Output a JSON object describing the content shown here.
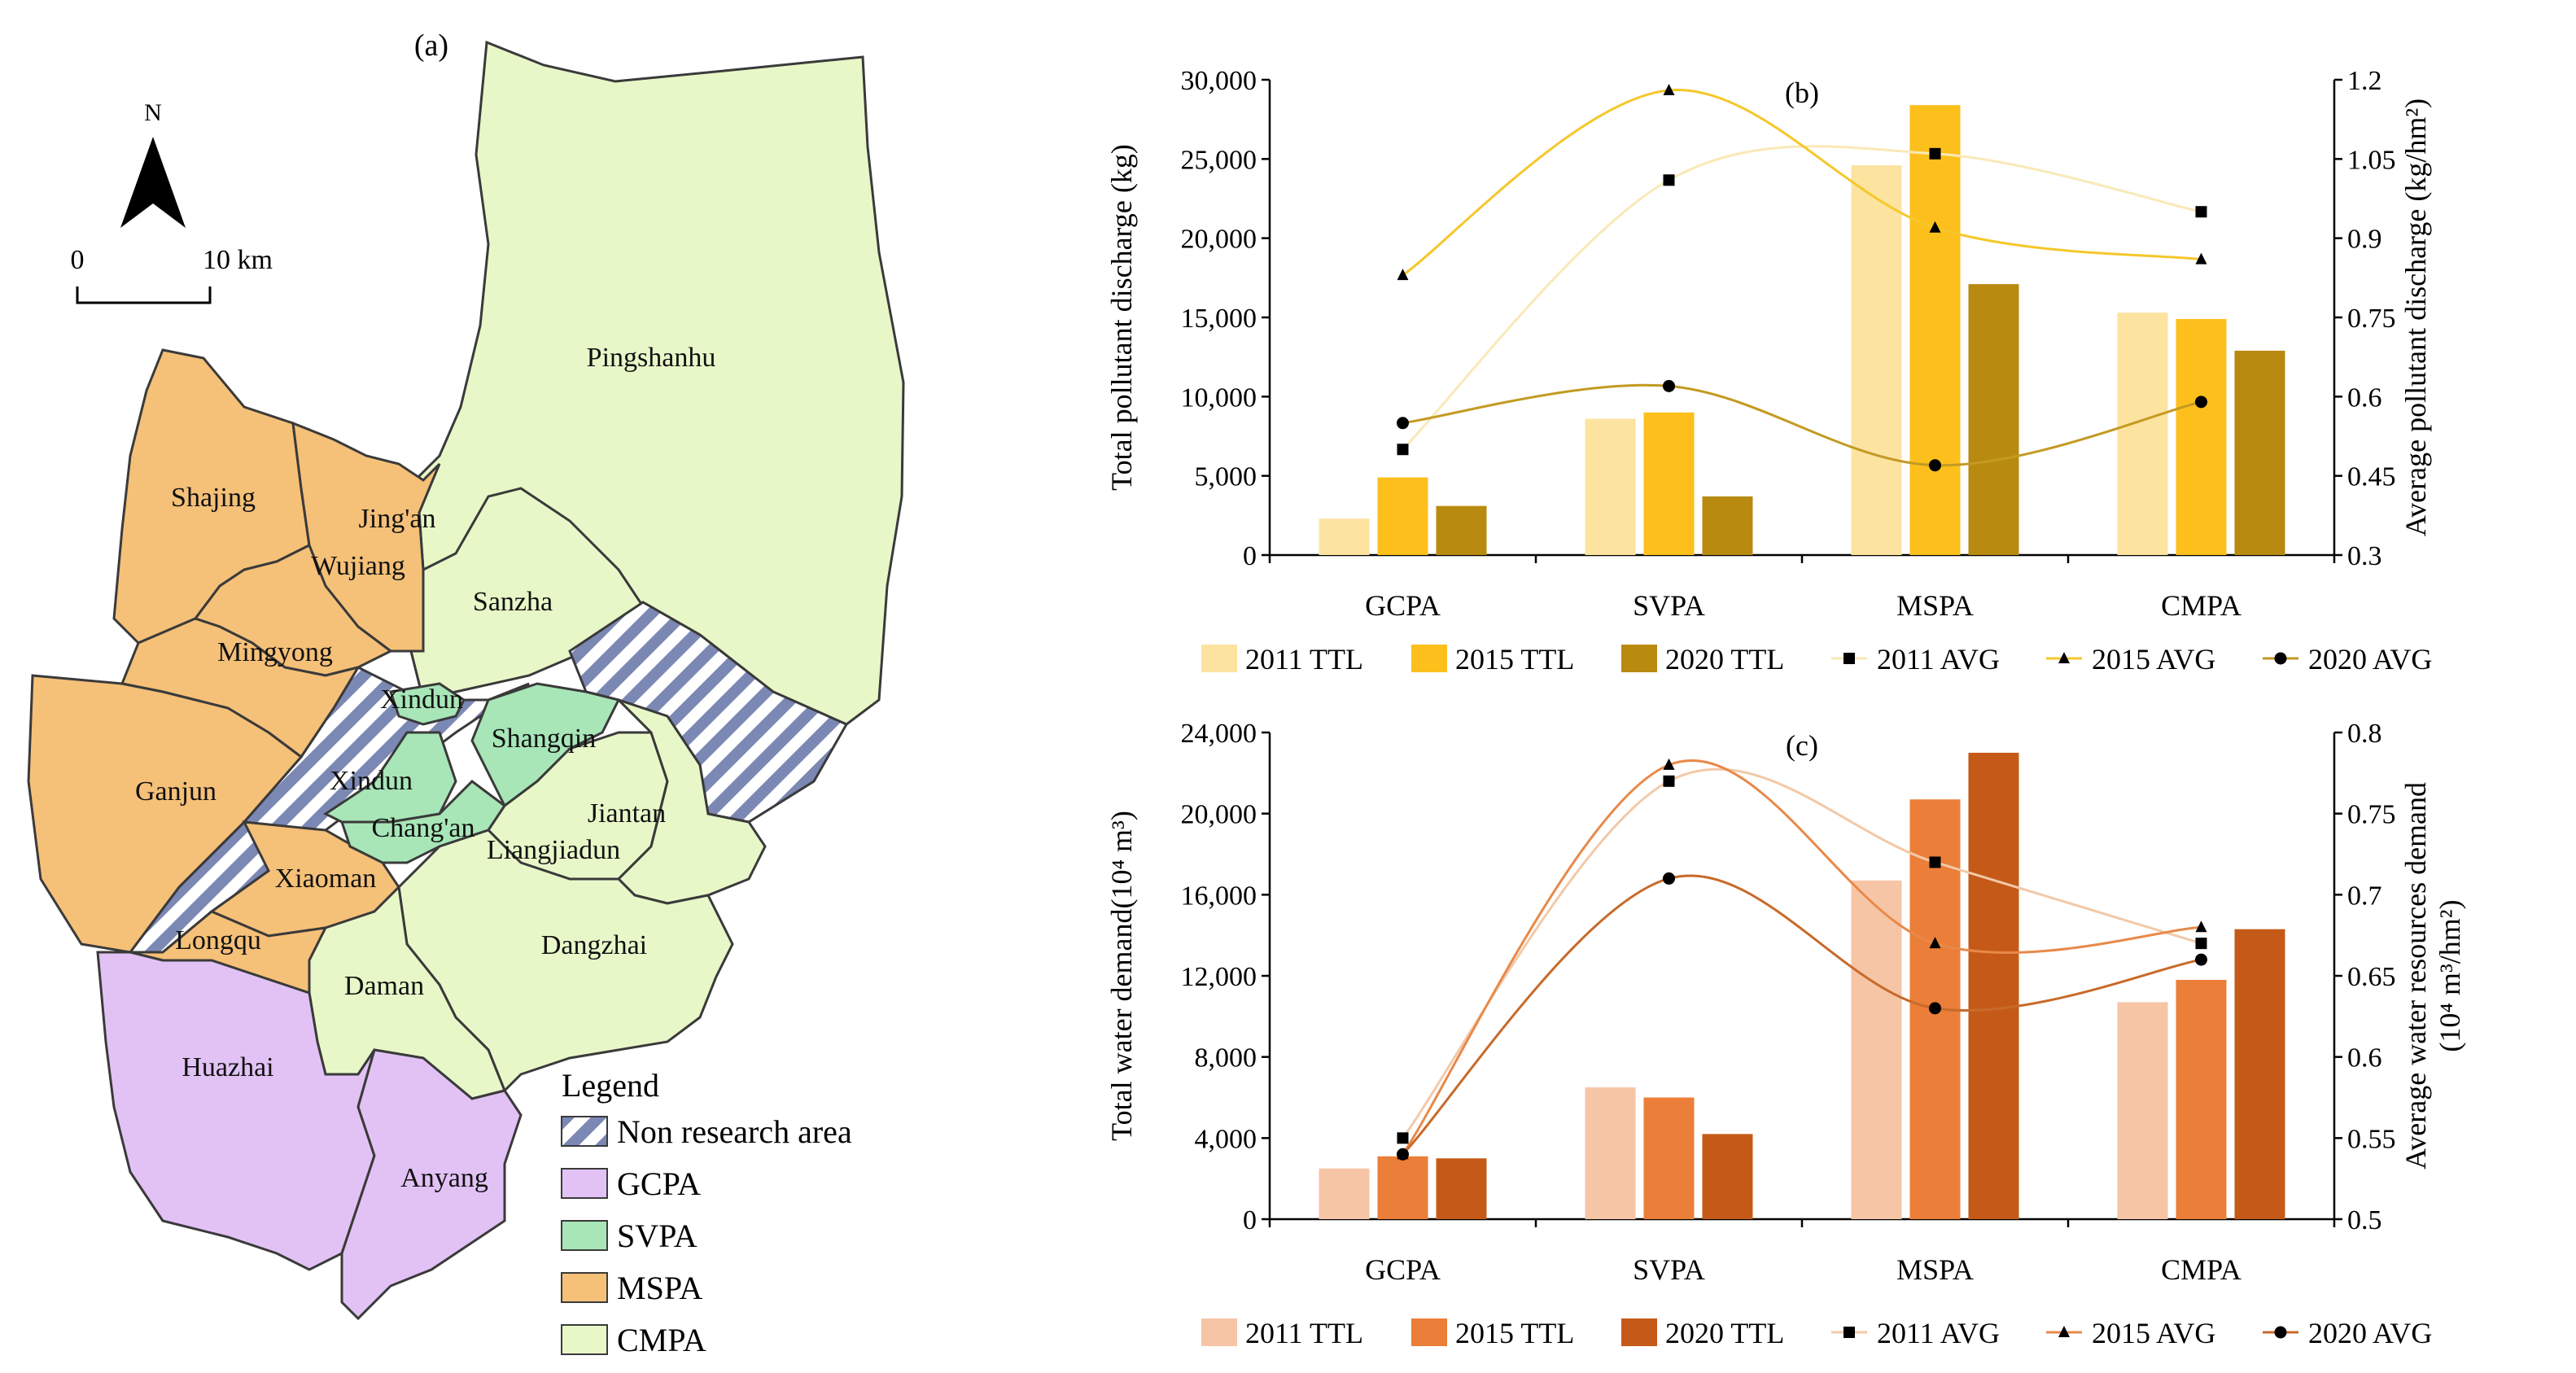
{
  "colors": {
    "gcpa": "#E2C2F5",
    "svpa": "#A8E6B8",
    "mspa": "#F5C078",
    "cmpa": "#E8F7C8",
    "nonresearch_stripe": "#7C88B4",
    "border": "#3a3a3a",
    "b_2011": "#FDE3A0",
    "b_2015": "#FDBF1C",
    "b_2020": "#B88A10",
    "b_line2011": "#F9E9B8",
    "b_line2015": "#F5C72A",
    "b_line2020": "#C39A22",
    "c_2011": "#F6C5A6",
    "c_2015": "#EB7E38",
    "c_2020": "#C55A18",
    "c_line2011": "#F2C9A8",
    "c_line2015": "#E8894A",
    "c_line2020": "#C86A2A"
  },
  "map": {
    "panel_label": "(a)",
    "north_label": "N",
    "scale_start": "0",
    "scale_end": "10 km",
    "regions": [
      {
        "name": "Pingshanhu",
        "zone": "cmpa"
      },
      {
        "name": "Sanzha",
        "zone": "cmpa"
      },
      {
        "name": "Shajing",
        "zone": "mspa"
      },
      {
        "name": "Jing'an",
        "zone": "mspa"
      },
      {
        "name": "Wujiang",
        "zone": "mspa"
      },
      {
        "name": "Mingyong",
        "zone": "mspa"
      },
      {
        "name": "Ganjun",
        "zone": "mspa"
      },
      {
        "name": "Xiaoman",
        "zone": "mspa"
      },
      {
        "name": "Longqu",
        "zone": "mspa"
      },
      {
        "name": "Xindun",
        "zone": "svpa"
      },
      {
        "name": "Xindun",
        "zone": "svpa"
      },
      {
        "name": "Shangqin",
        "zone": "svpa"
      },
      {
        "name": "Chang'an",
        "zone": "svpa"
      },
      {
        "name": "Liangjiadun",
        "zone": "cmpa"
      },
      {
        "name": "Jiantan",
        "zone": "cmpa"
      },
      {
        "name": "Dangzhai",
        "zone": "cmpa"
      },
      {
        "name": "Daman",
        "zone": "cmpa"
      },
      {
        "name": "Huazhai",
        "zone": "gcpa"
      },
      {
        "name": "Anyang",
        "zone": "gcpa"
      }
    ],
    "legend": {
      "title": "Legend",
      "items": [
        "Non research area",
        "GCPA",
        "SVPA",
        "MSPA",
        "CMPA"
      ]
    }
  },
  "chart_data": [
    {
      "panel": "(b)",
      "type": "bar",
      "categories": [
        "GCPA",
        "SVPA",
        "MSPA",
        "CMPA"
      ],
      "ylabel": "Total pollutant discharge (kg)",
      "y2label": "Average pollutant discharge (kg/hm²)",
      "ylim": [
        0,
        30000
      ],
      "y_ticks": [
        "0",
        "5,000",
        "10,000",
        "15,000",
        "20,000",
        "25,000",
        "30,000"
      ],
      "y2lim": [
        0.3,
        1.2
      ],
      "y2_ticks": [
        "0.3",
        "0.45",
        "0.6",
        "0.75",
        "0.9",
        "1.05",
        "1.2"
      ],
      "series": [
        {
          "name": "2011 TTL",
          "kind": "bar",
          "values": [
            2300,
            8600,
            24600,
            15300
          ]
        },
        {
          "name": "2015 TTL",
          "kind": "bar",
          "values": [
            4900,
            9000,
            28400,
            14900
          ]
        },
        {
          "name": "2020 TTL",
          "kind": "bar",
          "values": [
            3100,
            3700,
            17100,
            12900
          ]
        },
        {
          "name": "2011 AVG",
          "kind": "line",
          "marker": "square",
          "axis": "right",
          "values": [
            0.5,
            1.01,
            1.06,
            0.95
          ]
        },
        {
          "name": "2015 AVG",
          "kind": "line",
          "marker": "triangle",
          "axis": "right",
          "values": [
            0.83,
            1.18,
            0.92,
            0.86
          ]
        },
        {
          "name": "2020 AVG",
          "kind": "line",
          "marker": "circle",
          "axis": "right",
          "values": [
            0.55,
            0.62,
            0.47,
            0.59
          ]
        }
      ]
    },
    {
      "panel": "(c)",
      "type": "bar",
      "categories": [
        "GCPA",
        "SVPA",
        "MSPA",
        "CMPA"
      ],
      "ylabel": "Total water demand(10⁴ m³)",
      "y2label_line1": "Average water resources demand",
      "y2label_line2": "(10⁴ m³/hm²)",
      "ylim": [
        0,
        24000
      ],
      "y_ticks": [
        "0",
        "4,000",
        "8,000",
        "12,000",
        "16,000",
        "20,000",
        "24,000"
      ],
      "y2lim": [
        0.5,
        0.8
      ],
      "y2_ticks": [
        "0.5",
        "0.55",
        "0.6",
        "0.65",
        "0.7",
        "0.75",
        "0.8"
      ],
      "series": [
        {
          "name": "2011 TTL",
          "kind": "bar",
          "values": [
            2500,
            6500,
            16700,
            10700
          ]
        },
        {
          "name": "2015 TTL",
          "kind": "bar",
          "values": [
            3100,
            6000,
            20700,
            11800
          ]
        },
        {
          "name": "2020 TTL",
          "kind": "bar",
          "values": [
            3000,
            4200,
            23000,
            14300
          ]
        },
        {
          "name": "2011 AVG",
          "kind": "line",
          "marker": "square",
          "axis": "right",
          "values": [
            0.55,
            0.77,
            0.72,
            0.67
          ]
        },
        {
          "name": "2015 AVG",
          "kind": "line",
          "marker": "triangle",
          "axis": "right",
          "values": [
            0.54,
            0.78,
            0.67,
            0.68
          ]
        },
        {
          "name": "2020 AVG",
          "kind": "line",
          "marker": "circle",
          "axis": "right",
          "values": [
            0.54,
            0.71,
            0.63,
            0.66
          ]
        }
      ]
    }
  ]
}
